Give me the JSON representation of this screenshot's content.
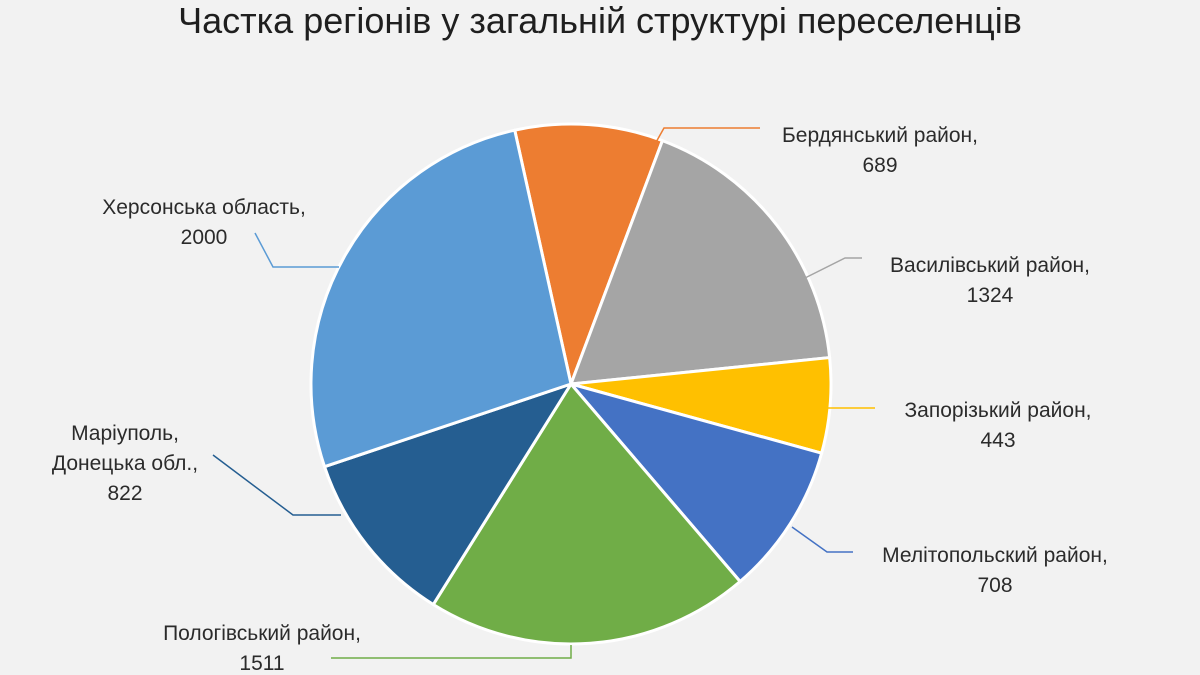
{
  "chart_data": {
    "type": "pie",
    "title": "Частка регіонів у загальній структурі переселенців",
    "slices": [
      {
        "name": "Бердянський район",
        "value": 689,
        "color": "#ED7D31",
        "label_lines": [
          "Бердянський район,",
          "689"
        ]
      },
      {
        "name": "Василівський район",
        "value": 1324,
        "color": "#A5A5A5",
        "label_lines": [
          "Василівський район,",
          "1324"
        ]
      },
      {
        "name": "Запорізький район",
        "value": 443,
        "color": "#FFC000",
        "label_lines": [
          "Запорізький район,",
          "443"
        ]
      },
      {
        "name": "Мелітопольский район",
        "value": 708,
        "color": "#4472C4",
        "label_lines": [
          "Мелітопольский район,",
          "708"
        ]
      },
      {
        "name": "Пологівський район",
        "value": 1511,
        "color": "#70AD47",
        "label_lines": [
          "Пологівський район,",
          "1511"
        ]
      },
      {
        "name": "Маріуполь, Донецька обл.",
        "value": 822,
        "color": "#255E91",
        "label_lines": [
          "Маріуполь,",
          "Донецька обл.,",
          "822"
        ]
      },
      {
        "name": "Херсонська область",
        "value": 2000,
        "color": "#5B9BD5",
        "label_lines": [
          "Херсонська область,",
          "2000"
        ]
      }
    ]
  }
}
